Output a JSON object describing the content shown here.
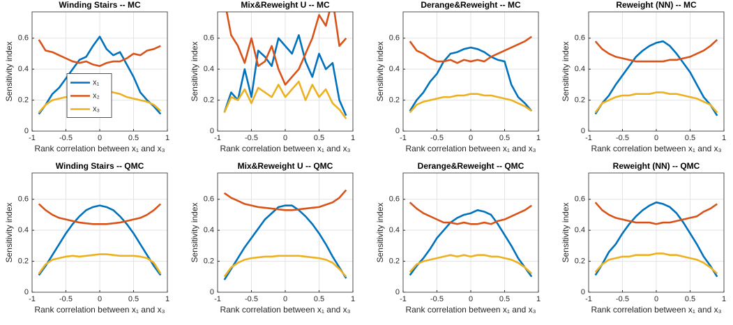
{
  "chart_data": [
    {
      "type": "line",
      "title": "Winding Stairs -- MC",
      "xlabel": "Rank correlation between x₁ and x₃",
      "ylabel": "Sensitivity index",
      "x": [
        -0.9,
        -0.8,
        -0.7,
        -0.6,
        -0.5,
        -0.4,
        -0.3,
        -0.2,
        -0.1,
        0,
        0.1,
        0.2,
        0.3,
        0.4,
        0.5,
        0.6,
        0.7,
        0.8,
        0.9
      ],
      "series": [
        {
          "name": "x₁",
          "color": "#0072BD",
          "values": [
            0.11,
            0.17,
            0.24,
            0.28,
            0.34,
            0.4,
            0.46,
            0.48,
            0.55,
            0.61,
            0.53,
            0.49,
            0.51,
            0.43,
            0.35,
            0.25,
            0.2,
            0.16,
            0.11
          ]
        },
        {
          "name": "x₂",
          "color": "#D95319",
          "values": [
            0.59,
            0.52,
            0.51,
            0.49,
            0.47,
            0.45,
            0.44,
            0.45,
            0.43,
            0.42,
            0.44,
            0.45,
            0.45,
            0.47,
            0.5,
            0.49,
            0.52,
            0.53,
            0.55
          ]
        },
        {
          "name": "x₃",
          "color": "#EDB120",
          "values": [
            0.12,
            0.17,
            0.2,
            0.21,
            0.22,
            0.22,
            0.24,
            0.23,
            0.25,
            0.24,
            0.26,
            0.25,
            0.24,
            0.22,
            0.21,
            0.2,
            0.19,
            0.17,
            0.13
          ]
        }
      ],
      "xlim": [
        -1,
        1
      ],
      "ylim": [
        0,
        0.77
      ],
      "xticks": [
        -1,
        -0.5,
        0,
        0.5,
        1
      ],
      "yticks": [
        0,
        0.2,
        0.4,
        0.6
      ],
      "grid": true,
      "legend": "west"
    },
    {
      "type": "line",
      "title": "Mix&Reweight U -- MC",
      "xlabel": "Rank correlation between x₁ and x₃",
      "ylabel": "Sensitivity index",
      "x": [
        -0.9,
        -0.8,
        -0.7,
        -0.6,
        -0.5,
        -0.4,
        -0.3,
        -0.2,
        -0.1,
        0,
        0.1,
        0.2,
        0.3,
        0.4,
        0.5,
        0.6,
        0.7,
        0.8,
        0.9
      ],
      "series": [
        {
          "color": "#0072BD",
          "values": [
            0.12,
            0.25,
            0.2,
            0.4,
            0.22,
            0.52,
            0.48,
            0.42,
            0.6,
            0.55,
            0.5,
            0.62,
            0.45,
            0.35,
            0.5,
            0.4,
            0.44,
            0.2,
            0.1
          ]
        },
        {
          "color": "#D95319",
          "values": [
            0.85,
            0.62,
            0.55,
            0.44,
            0.6,
            0.42,
            0.45,
            0.55,
            0.4,
            0.3,
            0.35,
            0.4,
            0.5,
            0.6,
            0.75,
            0.68,
            0.85,
            0.55,
            0.6
          ]
        },
        {
          "color": "#EDB120",
          "values": [
            0.12,
            0.22,
            0.2,
            0.27,
            0.18,
            0.28,
            0.25,
            0.22,
            0.3,
            0.22,
            0.27,
            0.32,
            0.2,
            0.3,
            0.22,
            0.27,
            0.18,
            0.14,
            0.08
          ]
        }
      ],
      "xlim": [
        -1,
        1
      ],
      "ylim": [
        0,
        0.77
      ],
      "xticks": [
        -1,
        -0.5,
        0,
        0.5,
        1
      ],
      "yticks": [
        0,
        0.2,
        0.4,
        0.6
      ],
      "grid": true
    },
    {
      "type": "line",
      "title": "Derange&Reweight -- MC",
      "xlabel": "Rank correlation between x₁ and x₃",
      "ylabel": "Sensitivity index",
      "x": [
        -0.9,
        -0.8,
        -0.7,
        -0.6,
        -0.5,
        -0.4,
        -0.3,
        -0.2,
        -0.1,
        0,
        0.1,
        0.2,
        0.3,
        0.4,
        0.5,
        0.6,
        0.7,
        0.8,
        0.9
      ],
      "series": [
        {
          "color": "#0072BD",
          "values": [
            0.13,
            0.2,
            0.25,
            0.32,
            0.37,
            0.45,
            0.5,
            0.51,
            0.53,
            0.54,
            0.53,
            0.51,
            0.48,
            0.46,
            0.45,
            0.3,
            0.22,
            0.18,
            0.13
          ]
        },
        {
          "color": "#D95319",
          "values": [
            0.58,
            0.52,
            0.5,
            0.47,
            0.45,
            0.45,
            0.46,
            0.44,
            0.46,
            0.45,
            0.46,
            0.45,
            0.48,
            0.5,
            0.52,
            0.54,
            0.56,
            0.58,
            0.61
          ]
        },
        {
          "color": "#EDB120",
          "values": [
            0.12,
            0.17,
            0.19,
            0.2,
            0.21,
            0.22,
            0.22,
            0.23,
            0.23,
            0.24,
            0.24,
            0.23,
            0.23,
            0.22,
            0.21,
            0.2,
            0.18,
            0.16,
            0.13
          ]
        }
      ],
      "xlim": [
        -1,
        1
      ],
      "ylim": [
        0,
        0.77
      ],
      "xticks": [
        -1,
        -0.5,
        0,
        0.5,
        1
      ],
      "yticks": [
        0,
        0.2,
        0.4,
        0.6
      ],
      "grid": true
    },
    {
      "type": "line",
      "title": "Reweight (NN) -- MC",
      "xlabel": "Rank correlation between x₁ and x₃",
      "ylabel": "Sensitivity index",
      "x": [
        -0.9,
        -0.8,
        -0.7,
        -0.6,
        -0.5,
        -0.4,
        -0.3,
        -0.2,
        -0.1,
        0,
        0.1,
        0.2,
        0.3,
        0.4,
        0.5,
        0.6,
        0.7,
        0.8,
        0.9
      ],
      "series": [
        {
          "color": "#0072BD",
          "values": [
            0.11,
            0.18,
            0.23,
            0.3,
            0.36,
            0.42,
            0.48,
            0.52,
            0.55,
            0.57,
            0.58,
            0.55,
            0.5,
            0.44,
            0.38,
            0.3,
            0.22,
            0.17,
            0.1
          ]
        },
        {
          "color": "#D95319",
          "values": [
            0.58,
            0.53,
            0.5,
            0.48,
            0.47,
            0.46,
            0.45,
            0.45,
            0.45,
            0.45,
            0.45,
            0.46,
            0.46,
            0.47,
            0.48,
            0.5,
            0.52,
            0.55,
            0.59
          ]
        },
        {
          "color": "#EDB120",
          "values": [
            0.12,
            0.18,
            0.2,
            0.22,
            0.23,
            0.23,
            0.24,
            0.24,
            0.24,
            0.25,
            0.25,
            0.24,
            0.24,
            0.23,
            0.22,
            0.21,
            0.19,
            0.17,
            0.12
          ]
        }
      ],
      "xlim": [
        -1,
        1
      ],
      "ylim": [
        0,
        0.77
      ],
      "xticks": [
        -1,
        -0.5,
        0,
        0.5,
        1
      ],
      "yticks": [
        0,
        0.2,
        0.4,
        0.6
      ],
      "grid": true
    },
    {
      "type": "line",
      "title": "Winding Stairs -- QMC",
      "xlabel": "Rank correlation between x₁ and x₃",
      "ylabel": "Sensitivity index",
      "x": [
        -0.9,
        -0.8,
        -0.7,
        -0.6,
        -0.5,
        -0.4,
        -0.3,
        -0.2,
        -0.1,
        0,
        0.1,
        0.2,
        0.3,
        0.4,
        0.5,
        0.6,
        0.7,
        0.8,
        0.9
      ],
      "series": [
        {
          "color": "#0072BD",
          "values": [
            0.11,
            0.17,
            0.24,
            0.31,
            0.38,
            0.44,
            0.49,
            0.53,
            0.55,
            0.56,
            0.55,
            0.53,
            0.49,
            0.44,
            0.38,
            0.31,
            0.24,
            0.17,
            0.11
          ]
        },
        {
          "color": "#D95319",
          "values": [
            0.57,
            0.53,
            0.5,
            0.48,
            0.47,
            0.46,
            0.45,
            0.445,
            0.44,
            0.44,
            0.44,
            0.445,
            0.45,
            0.46,
            0.47,
            0.48,
            0.5,
            0.53,
            0.57
          ]
        },
        {
          "color": "#EDB120",
          "values": [
            0.12,
            0.18,
            0.21,
            0.22,
            0.23,
            0.235,
            0.23,
            0.235,
            0.24,
            0.245,
            0.245,
            0.24,
            0.235,
            0.235,
            0.235,
            0.23,
            0.22,
            0.19,
            0.12
          ]
        }
      ],
      "xlim": [
        -1,
        1
      ],
      "ylim": [
        0,
        0.77
      ],
      "xticks": [
        -1,
        -0.5,
        0,
        0.5,
        1
      ],
      "yticks": [
        0,
        0.2,
        0.4,
        0.6
      ],
      "grid": true
    },
    {
      "type": "line",
      "title": "Mix&Reweight U -- QMC",
      "xlabel": "Rank correlation between x₁ and x₃",
      "ylabel": "Sensitivity index",
      "x": [
        -0.9,
        -0.8,
        -0.7,
        -0.6,
        -0.5,
        -0.4,
        -0.3,
        -0.2,
        -0.1,
        0,
        0.1,
        0.2,
        0.3,
        0.4,
        0.5,
        0.6,
        0.7,
        0.8,
        0.9
      ],
      "series": [
        {
          "color": "#0072BD",
          "values": [
            0.08,
            0.15,
            0.22,
            0.29,
            0.35,
            0.41,
            0.47,
            0.51,
            0.55,
            0.56,
            0.56,
            0.53,
            0.49,
            0.44,
            0.38,
            0.31,
            0.23,
            0.16,
            0.09
          ]
        },
        {
          "color": "#D95319",
          "values": [
            0.64,
            0.61,
            0.59,
            0.57,
            0.56,
            0.55,
            0.545,
            0.54,
            0.535,
            0.53,
            0.53,
            0.535,
            0.54,
            0.545,
            0.55,
            0.565,
            0.58,
            0.61,
            0.66
          ]
        },
        {
          "color": "#EDB120",
          "values": [
            0.1,
            0.16,
            0.19,
            0.21,
            0.22,
            0.225,
            0.23,
            0.23,
            0.235,
            0.235,
            0.235,
            0.235,
            0.23,
            0.225,
            0.22,
            0.21,
            0.19,
            0.15,
            0.1
          ]
        }
      ],
      "xlim": [
        -1,
        1
      ],
      "ylim": [
        0,
        0.77
      ],
      "xticks": [
        -1,
        -0.5,
        0,
        0.5,
        1
      ],
      "yticks": [
        0,
        0.2,
        0.4,
        0.6
      ],
      "grid": true
    },
    {
      "type": "line",
      "title": "Derange&Reweight -- QMC",
      "xlabel": "Rank correlation between x₁ and x₃",
      "ylabel": "Sensitivity index",
      "x": [
        -0.9,
        -0.8,
        -0.7,
        -0.6,
        -0.5,
        -0.4,
        -0.3,
        -0.2,
        -0.1,
        0,
        0.1,
        0.2,
        0.3,
        0.4,
        0.5,
        0.6,
        0.7,
        0.8,
        0.9
      ],
      "series": [
        {
          "color": "#0072BD",
          "values": [
            0.11,
            0.17,
            0.22,
            0.28,
            0.35,
            0.4,
            0.45,
            0.48,
            0.5,
            0.51,
            0.53,
            0.52,
            0.5,
            0.44,
            0.37,
            0.3,
            0.22,
            0.16,
            0.1
          ]
        },
        {
          "color": "#D95319",
          "values": [
            0.58,
            0.54,
            0.51,
            0.49,
            0.47,
            0.45,
            0.45,
            0.44,
            0.45,
            0.44,
            0.44,
            0.45,
            0.44,
            0.46,
            0.47,
            0.49,
            0.51,
            0.53,
            0.56
          ]
        },
        {
          "color": "#EDB120",
          "values": [
            0.13,
            0.18,
            0.2,
            0.21,
            0.22,
            0.23,
            0.24,
            0.23,
            0.24,
            0.23,
            0.24,
            0.24,
            0.23,
            0.23,
            0.22,
            0.21,
            0.19,
            0.16,
            0.12
          ]
        }
      ],
      "xlim": [
        -1,
        1
      ],
      "ylim": [
        0,
        0.77
      ],
      "xticks": [
        -1,
        -0.5,
        0,
        0.5,
        1
      ],
      "yticks": [
        0,
        0.2,
        0.4,
        0.6
      ],
      "grid": true
    },
    {
      "type": "line",
      "title": "Reweight (NN) -- QMC",
      "xlabel": "Rank correlation between x₁ and x₃",
      "ylabel": "Sensitivity index",
      "x": [
        -0.9,
        -0.8,
        -0.7,
        -0.6,
        -0.5,
        -0.4,
        -0.3,
        -0.2,
        -0.1,
        0,
        0.1,
        0.2,
        0.3,
        0.4,
        0.5,
        0.6,
        0.7,
        0.8,
        0.9
      ],
      "series": [
        {
          "color": "#0072BD",
          "values": [
            0.11,
            0.18,
            0.26,
            0.31,
            0.38,
            0.44,
            0.49,
            0.53,
            0.56,
            0.58,
            0.57,
            0.55,
            0.51,
            0.45,
            0.38,
            0.31,
            0.23,
            0.17,
            0.1
          ]
        },
        {
          "color": "#D95319",
          "values": [
            0.58,
            0.53,
            0.5,
            0.48,
            0.47,
            0.46,
            0.45,
            0.45,
            0.45,
            0.44,
            0.45,
            0.45,
            0.46,
            0.47,
            0.48,
            0.49,
            0.52,
            0.54,
            0.57
          ]
        },
        {
          "color": "#EDB120",
          "values": [
            0.13,
            0.18,
            0.21,
            0.22,
            0.23,
            0.23,
            0.24,
            0.24,
            0.24,
            0.25,
            0.25,
            0.24,
            0.24,
            0.23,
            0.22,
            0.21,
            0.19,
            0.16,
            0.12
          ]
        }
      ],
      "xlim": [
        -1,
        1
      ],
      "ylim": [
        0,
        0.77
      ],
      "xticks": [
        -1,
        -0.5,
        0,
        0.5,
        1
      ],
      "yticks": [
        0,
        0.2,
        0.4,
        0.6
      ],
      "grid": true
    }
  ]
}
